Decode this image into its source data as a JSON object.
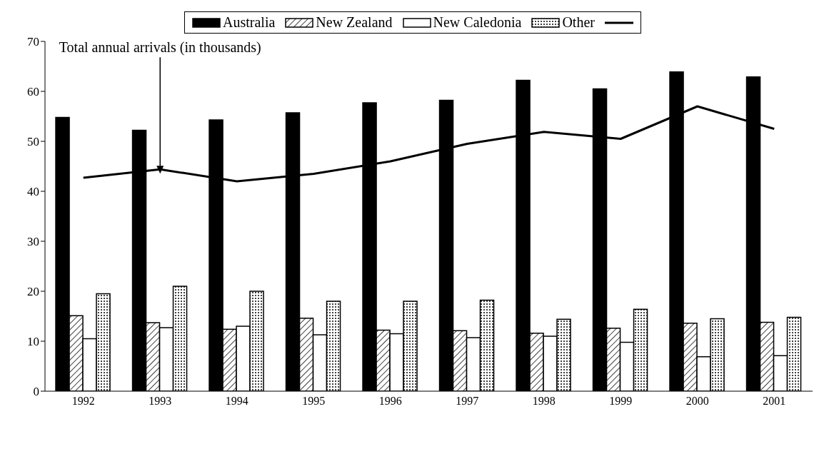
{
  "chart_data": {
    "type": "bar",
    "categories": [
      "1992",
      "1993",
      "1994",
      "1995",
      "1996",
      "1997",
      "1998",
      "1999",
      "2000",
      "2001"
    ],
    "series": [
      {
        "name": "Australia",
        "color": "#000000",
        "values": [
          54.8,
          52.2,
          54.3,
          55.7,
          57.7,
          58.2,
          62.2,
          60.5,
          63.9,
          62.9
        ]
      },
      {
        "name": "New Zealand",
        "color": "#000000",
        "values": [
          15.1,
          13.7,
          12.4,
          14.6,
          12.2,
          12.1,
          11.6,
          12.6,
          13.6,
          13.8
        ]
      },
      {
        "name": "New Caledonia",
        "color": "#ffffff",
        "values": [
          10.5,
          12.7,
          13.0,
          11.3,
          11.5,
          10.7,
          11.0,
          9.8,
          6.9,
          7.1
        ]
      },
      {
        "name": "Other",
        "color": "#000000",
        "values": [
          19.5,
          21.0,
          20.0,
          18.0,
          18.0,
          18.2,
          14.4,
          16.4,
          14.5,
          14.8
        ]
      },
      {
        "type": "line",
        "color": "#000000",
        "values": [
          42.7,
          44.4,
          42.0,
          43.5,
          46.0,
          49.5,
          51.9,
          50.5,
          57.0,
          52.5
        ]
      }
    ],
    "annotations": [
      {
        "text": "Total annual arrivals (in thousands)",
        "x": "1993",
        "y": 44.4
      }
    ],
    "ylim": [
      0,
      70
    ],
    "yticks": [
      0,
      10,
      20,
      30,
      40,
      50,
      60,
      70
    ],
    "legend": "top",
    "grid": false,
    "marker": "none",
    "line_style": "solid"
  }
}
